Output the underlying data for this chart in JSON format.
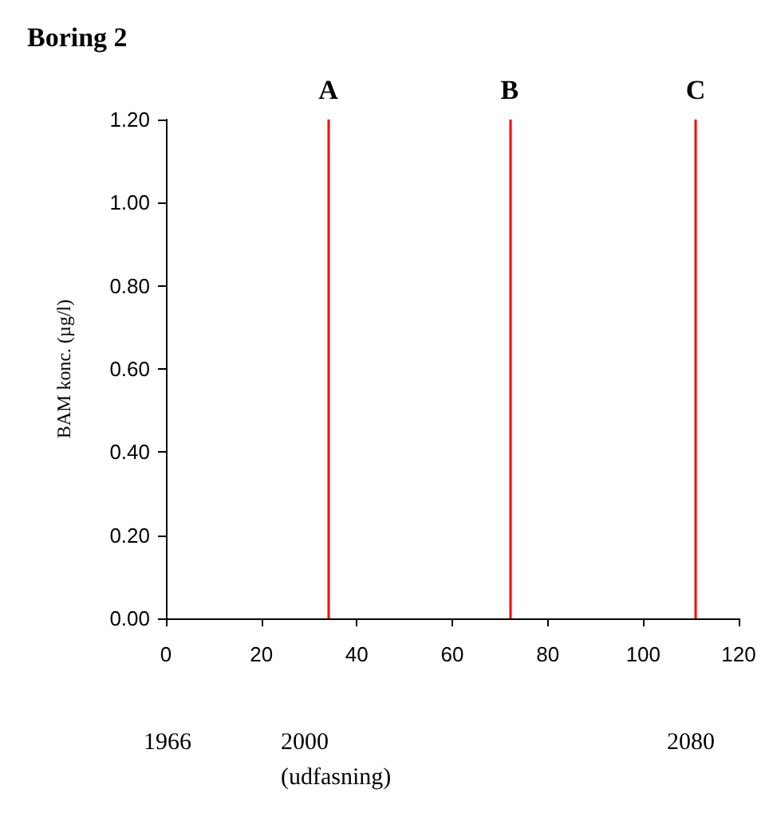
{
  "chart_data": {
    "type": "line",
    "title": "Boring 2",
    "ylabel": "BAM konc. (µg/l)",
    "xlim": [
      0,
      120
    ],
    "xticks": [
      0,
      20,
      40,
      60,
      80,
      100,
      120
    ],
    "ylim": [
      0,
      1.2
    ],
    "yticks": [
      {
        "value": 0,
        "label": "0.00"
      },
      {
        "value": 0.2,
        "label": "0.20"
      },
      {
        "value": 0.4,
        "label": "0.40"
      },
      {
        "value": 0.6,
        "label": "0.60"
      },
      {
        "value": 0.8,
        "label": "0.80"
      },
      {
        "value": 1.0,
        "label": "1.00"
      },
      {
        "value": 1.2,
        "label": "1.20"
      }
    ],
    "grid": false,
    "ref_lines": [
      {
        "axis": "x",
        "value": 34,
        "label": "A",
        "color": "#ff0000"
      },
      {
        "axis": "x",
        "value": 72,
        "label": "B",
        "color": "#ff0000"
      },
      {
        "axis": "x",
        "value": 111,
        "label": "C",
        "color": "#ff0000"
      }
    ],
    "annotations": [
      "1966",
      "2000\n(udfasning)",
      "2080"
    ]
  }
}
